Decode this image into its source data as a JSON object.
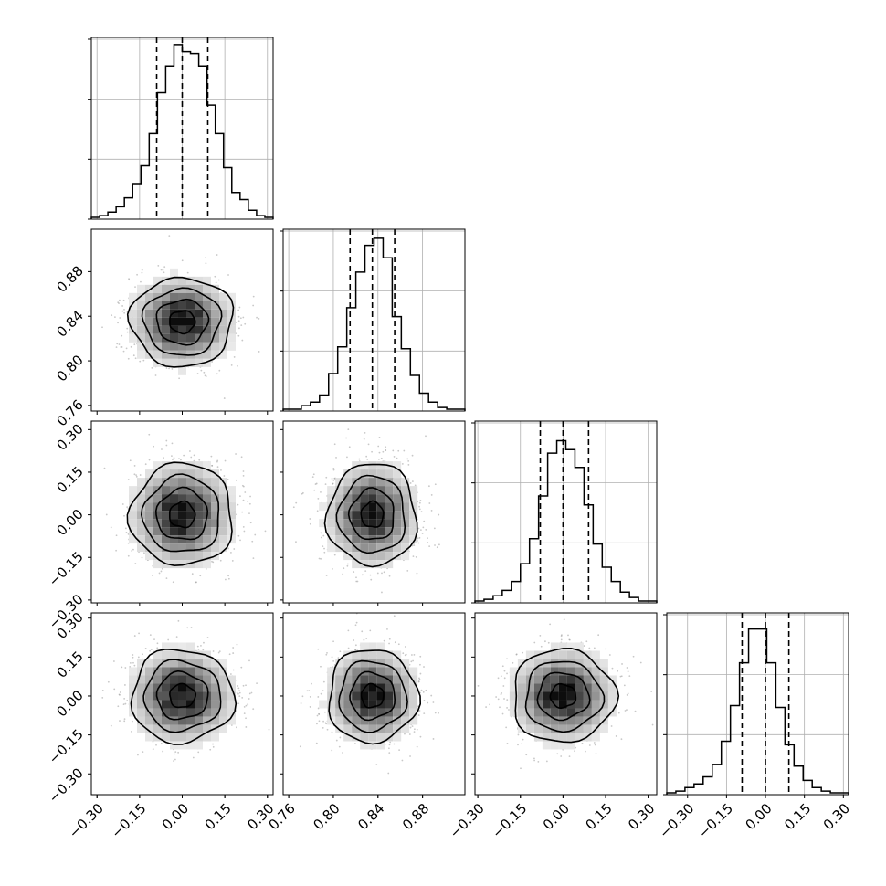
{
  "chart_data": {
    "type": "corner",
    "title": "",
    "grid": true,
    "parameters": [
      {
        "range": [
          -0.32,
          0.32
        ],
        "ticks": [
          -0.3,
          -0.15,
          0.0,
          0.15,
          0.3
        ],
        "tick_labels": [
          "−0.30",
          "−0.15",
          "0.00",
          "0.15",
          "0.30"
        ],
        "quantiles": [
          -0.09,
          0.0,
          0.09
        ],
        "mean": 0.0,
        "sigma": 0.09
      },
      {
        "range": [
          0.755,
          0.918
        ],
        "ticks": [
          0.76,
          0.8,
          0.84,
          0.88
        ],
        "tick_labels": [
          "0.76",
          "0.80",
          "0.84",
          "0.88"
        ],
        "quantiles": [
          0.815,
          0.835,
          0.855
        ],
        "mean": 0.835,
        "sigma": 0.02
      },
      {
        "range": [
          -0.31,
          0.33
        ],
        "ticks": [
          -0.3,
          -0.15,
          0.0,
          0.15,
          0.3
        ],
        "tick_labels": [
          "−0.30",
          "−0.15",
          "0.00",
          "0.15",
          "0.30"
        ],
        "quantiles": [
          -0.08,
          0.0,
          0.09
        ],
        "mean": 0.0,
        "sigma": 0.09
      },
      {
        "range": [
          -0.38,
          0.32
        ],
        "ticks": [
          -0.3,
          -0.15,
          0.0,
          0.15,
          0.3
        ],
        "tick_labels": [
          "−0.30",
          "−0.15",
          "0.00",
          "0.15",
          "0.30"
        ],
        "quantiles": [
          -0.09,
          0.0,
          0.09
        ],
        "mean": 0.0,
        "sigma": 0.09
      }
    ],
    "histograms": [
      [
        0.01,
        0.02,
        0.04,
        0.07,
        0.12,
        0.2,
        0.3,
        0.48,
        0.71,
        0.86,
        0.98,
        0.94,
        0.93,
        0.86,
        0.64,
        0.48,
        0.29,
        0.15,
        0.11,
        0.05,
        0.02,
        0.01
      ],
      [
        0.01,
        0.01,
        0.03,
        0.05,
        0.09,
        0.21,
        0.36,
        0.58,
        0.78,
        0.93,
        0.97,
        0.86,
        0.53,
        0.35,
        0.2,
        0.1,
        0.05,
        0.02,
        0.01,
        0.01
      ],
      [
        0.01,
        0.02,
        0.04,
        0.07,
        0.12,
        0.22,
        0.36,
        0.6,
        0.84,
        0.91,
        0.86,
        0.76,
        0.55,
        0.33,
        0.2,
        0.12,
        0.06,
        0.03,
        0.01,
        0.01
      ],
      [
        0.01,
        0.02,
        0.04,
        0.06,
        0.1,
        0.17,
        0.3,
        0.5,
        0.74,
        0.93,
        0.93,
        0.74,
        0.49,
        0.28,
        0.16,
        0.08,
        0.04,
        0.02,
        0.01,
        0.01
      ]
    ],
    "contour_sigma_levels": [
      0.5,
      1.0,
      1.5,
      2.0
    ],
    "colors": {
      "frame": "#000000",
      "grid": "#b0b0b0",
      "points": "#9a9a9a",
      "density": "#000000"
    }
  }
}
